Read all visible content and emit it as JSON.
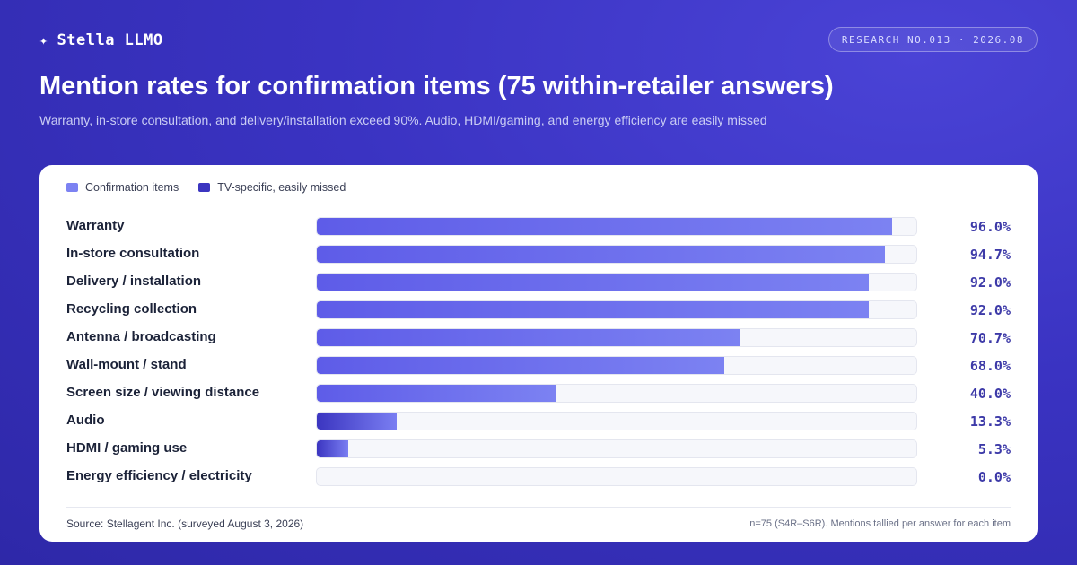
{
  "brand": {
    "star": "✦",
    "name": "Stella LLMO"
  },
  "badge": "RESEARCH NO.013 · 2026.08",
  "header": {
    "title": "Mention rates for confirmation items (75 within-retailer answers)",
    "subtitle": "Warranty, in-store consultation, and delivery/installation exceed 90%. Audio, HDMI/gaming, and energy efficiency are easily missed"
  },
  "legend": {
    "items": [
      {
        "label": "Confirmation items",
        "color": "#7c82f2"
      },
      {
        "label": "TV-specific, easily missed",
        "color": "#3b35c0"
      }
    ]
  },
  "colors": {
    "confirmation_start": "#5e5ce8",
    "confirmation_end": "#7c82f2",
    "missed_start": "#3b35c0",
    "missed_end": "#7a7ef2",
    "value_text": "#3d3aa8"
  },
  "chart_data": {
    "type": "bar",
    "orientation": "horizontal",
    "title": "Mention rates for confirmation items (75 within-retailer answers)",
    "subtitle": "Warranty, in-store consultation, and delivery/installation exceed 90%. Audio, HDMI/gaming, and energy efficiency are easily missed",
    "categories": [
      "Warranty",
      "In-store consultation",
      "Delivery / installation",
      "Recycling collection",
      "Antenna / broadcasting",
      "Wall-mount / stand",
      "Screen size / viewing distance",
      "Audio",
      "HDMI / gaming use",
      "Energy efficiency / electricity"
    ],
    "values": [
      96.0,
      94.7,
      92.0,
      92.0,
      70.7,
      68.0,
      40.0,
      13.3,
      5.3,
      0.0
    ],
    "value_labels": [
      "96.0%",
      "94.7%",
      "92.0%",
      "92.0%",
      "70.7%",
      "68.0%",
      "40.0%",
      "13.3%",
      "5.3%",
      "0.0%"
    ],
    "groups": [
      "Confirmation items",
      "Confirmation items",
      "Confirmation items",
      "Confirmation items",
      "Confirmation items",
      "Confirmation items",
      "Confirmation items",
      "TV-specific, easily missed",
      "TV-specific, easily missed",
      "TV-specific, easily missed"
    ],
    "xlim": [
      0,
      100
    ],
    "unit": "%",
    "grid": false,
    "legend_position": "top-left"
  },
  "footer": {
    "source": "Source: Stellagent Inc. (surveyed August 3, 2026)",
    "note": "n=75 (S4R–S6R). Mentions tallied per answer for each item"
  }
}
